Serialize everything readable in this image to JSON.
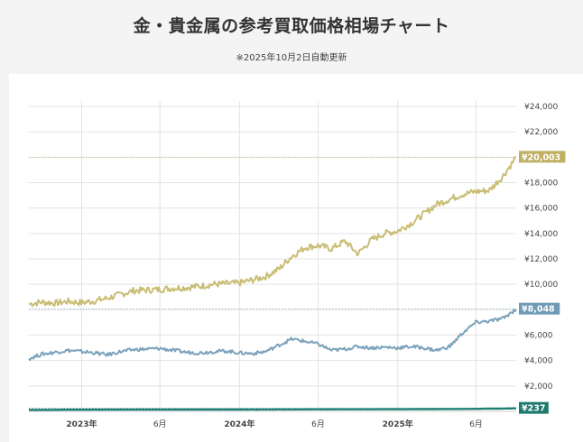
{
  "header": {
    "title": "金・貴金属の参考買取価格相場チャート",
    "updated": "※2025年10月2日自動更新"
  },
  "chart_data": {
    "type": "line",
    "ylim": [
      0,
      24000
    ],
    "y_ticks": [
      2000,
      4000,
      6000,
      8000,
      10000,
      12000,
      14000,
      16000,
      18000,
      20000,
      22000,
      24000
    ],
    "y_tick_labels": [
      "¥2,000",
      "¥4,000",
      "¥6,000",
      "¥8,000",
      "¥10,000",
      "¥12,000",
      "¥14,000",
      "¥16,000",
      "¥18,000",
      "¥20,000",
      "¥22,000",
      "¥24,000"
    ],
    "x_range": [
      "2022-09-01",
      "2025-10-02"
    ],
    "x_ticks": [
      {
        "date": "2023-01-01",
        "label": "2023年",
        "bold": true
      },
      {
        "date": "2023-07-01",
        "label": "6月",
        "bold": false
      },
      {
        "date": "2024-01-01",
        "label": "2024年",
        "bold": true
      },
      {
        "date": "2024-07-01",
        "label": "6月",
        "bold": false
      },
      {
        "date": "2025-01-01",
        "label": "2025年",
        "bold": true
      },
      {
        "date": "2025-07-01",
        "label": "6月",
        "bold": false
      }
    ],
    "grid": true,
    "series": [
      {
        "color": "#c9bd74",
        "badge_color": "#bfb063",
        "last_label": "¥20,003",
        "last_value": 20003,
        "points": [
          [
            "2022-09-01",
            8450
          ],
          [
            "2022-10-01",
            8600
          ],
          [
            "2022-11-01",
            8520
          ],
          [
            "2022-12-01",
            8650
          ],
          [
            "2023-01-01",
            8550
          ],
          [
            "2023-02-01",
            8700
          ],
          [
            "2023-03-01",
            8900
          ],
          [
            "2023-04-01",
            9200
          ],
          [
            "2023-05-01",
            9500
          ],
          [
            "2023-06-01",
            9550
          ],
          [
            "2023-07-01",
            9600
          ],
          [
            "2023-08-01",
            9700
          ],
          [
            "2023-09-01",
            9750
          ],
          [
            "2023-10-01",
            9850
          ],
          [
            "2023-11-01",
            10000
          ],
          [
            "2023-12-01",
            10050
          ],
          [
            "2024-01-01",
            10100
          ],
          [
            "2024-02-01",
            10350
          ],
          [
            "2024-03-01",
            10600
          ],
          [
            "2024-04-01",
            11200
          ],
          [
            "2024-05-01",
            12200
          ],
          [
            "2024-06-01",
            12900
          ],
          [
            "2024-07-01",
            13050
          ],
          [
            "2024-08-01",
            12800
          ],
          [
            "2024-09-01",
            13400
          ],
          [
            "2024-10-01",
            12400
          ],
          [
            "2024-11-01",
            13500
          ],
          [
            "2024-12-01",
            14000
          ],
          [
            "2025-01-01",
            14200
          ],
          [
            "2025-02-01",
            14800
          ],
          [
            "2025-03-01",
            15500
          ],
          [
            "2025-04-01",
            16300
          ],
          [
            "2025-05-01",
            16700
          ],
          [
            "2025-06-01",
            17100
          ],
          [
            "2025-07-01",
            17300
          ],
          [
            "2025-08-01",
            17400
          ],
          [
            "2025-09-01",
            18500
          ],
          [
            "2025-10-02",
            20003
          ]
        ]
      },
      {
        "color": "#7aa2bb",
        "badge_color": "#6f9ab5",
        "last_label": "¥8,048",
        "last_value": 8048,
        "points": [
          [
            "2022-09-01",
            4150
          ],
          [
            "2022-10-01",
            4500
          ],
          [
            "2022-11-01",
            4650
          ],
          [
            "2022-12-01",
            4800
          ],
          [
            "2023-01-01",
            4700
          ],
          [
            "2023-02-01",
            4600
          ],
          [
            "2023-03-01",
            4450
          ],
          [
            "2023-04-01",
            4700
          ],
          [
            "2023-05-01",
            4850
          ],
          [
            "2023-06-01",
            4900
          ],
          [
            "2023-07-01",
            4950
          ],
          [
            "2023-08-01",
            4800
          ],
          [
            "2023-09-01",
            4650
          ],
          [
            "2023-10-01",
            4600
          ],
          [
            "2023-11-01",
            4700
          ],
          [
            "2023-12-01",
            4750
          ],
          [
            "2024-01-01",
            4600
          ],
          [
            "2024-02-01",
            4550
          ],
          [
            "2024-03-01",
            4700
          ],
          [
            "2024-04-01",
            5200
          ],
          [
            "2024-05-01",
            5700
          ],
          [
            "2024-06-01",
            5500
          ],
          [
            "2024-07-01",
            5300
          ],
          [
            "2024-08-01",
            4800
          ],
          [
            "2024-09-01",
            4900
          ],
          [
            "2024-10-01",
            5100
          ],
          [
            "2024-11-01",
            5000
          ],
          [
            "2024-12-01",
            5050
          ],
          [
            "2025-01-01",
            5000
          ],
          [
            "2025-02-01",
            5100
          ],
          [
            "2025-03-01",
            5000
          ],
          [
            "2025-04-01",
            4800
          ],
          [
            "2025-05-01",
            5100
          ],
          [
            "2025-06-01",
            6200
          ],
          [
            "2025-07-01",
            7000
          ],
          [
            "2025-08-01",
            7100
          ],
          [
            "2025-09-01",
            7300
          ],
          [
            "2025-10-02",
            8048
          ]
        ]
      },
      {
        "color": "#1f7f73",
        "badge_color": "#1e7a6d",
        "last_label": "¥237",
        "last_value": 237,
        "points": [
          [
            "2022-09-01",
            110
          ],
          [
            "2023-01-01",
            130
          ],
          [
            "2023-07-01",
            140
          ],
          [
            "2024-01-01",
            145
          ],
          [
            "2024-07-01",
            160
          ],
          [
            "2025-01-01",
            165
          ],
          [
            "2025-07-01",
            195
          ],
          [
            "2025-10-02",
            237
          ]
        ]
      }
    ]
  }
}
